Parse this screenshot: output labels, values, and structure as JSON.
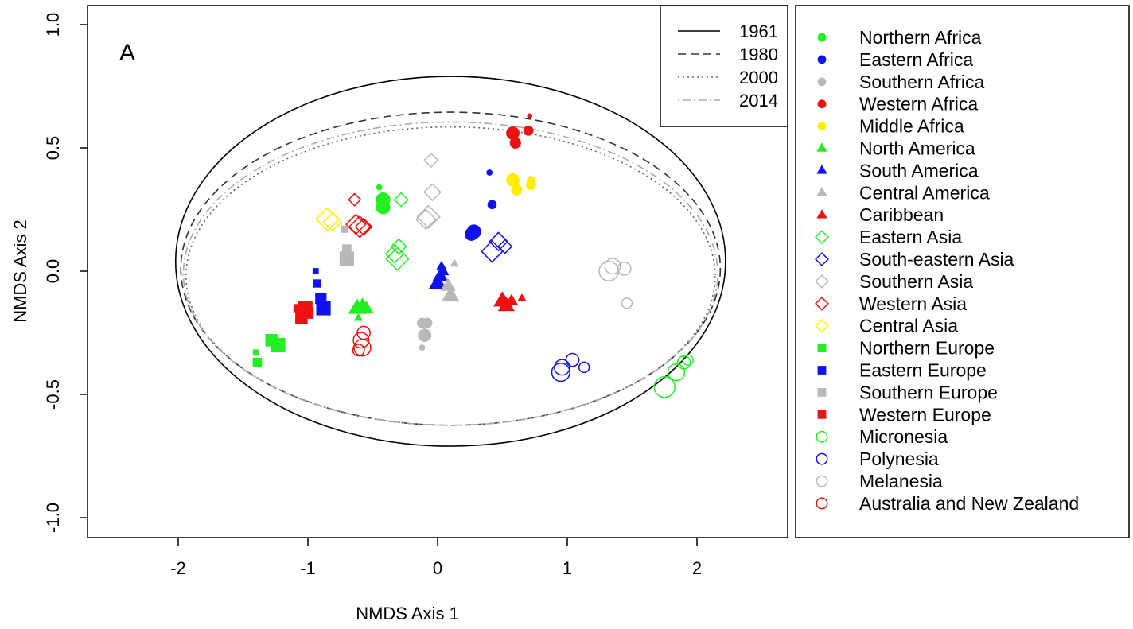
{
  "chart_data": {
    "type": "scatter",
    "panel_label": "A",
    "xlabel": "NMDS Axis 1",
    "ylabel": "NMDS Axis 2",
    "xlim": [
      -2.7,
      2.7
    ],
    "ylim": [
      -1.08,
      1.08
    ],
    "xticks": [
      -2,
      -1,
      0,
      1,
      2
    ],
    "yticks": [
      -1.0,
      -0.5,
      0.0,
      0.5,
      1.0
    ],
    "xtick_labels": [
      "-2",
      "-1",
      "0",
      "1",
      "2"
    ],
    "ytick_labels": [
      "-1.0",
      "-0.5",
      "0.0",
      "0.5",
      "1.0"
    ],
    "grid": false,
    "ellipses": [
      {
        "year": "1961",
        "cx": 0.1,
        "cy": 0.04,
        "rx": 2.12,
        "ry": 0.75,
        "dash": "solid",
        "color": "#000000"
      },
      {
        "year": "1980",
        "cx": 0.1,
        "cy": 0.01,
        "rx": 2.08,
        "ry": 0.635,
        "dash": "dashed",
        "color": "#333333"
      },
      {
        "year": "2000",
        "cx": 0.1,
        "cy": -0.02,
        "rx": 2.04,
        "ry": 0.605,
        "dash": "dotted",
        "color": "#666666"
      },
      {
        "year": "2014",
        "cx": 0.1,
        "cy": -0.01,
        "rx": 2.06,
        "ry": 0.615,
        "dash": "dotdash",
        "color": "#aaaaaa"
      }
    ],
    "line_legend": {
      "placement": "top-right inside",
      "entries": [
        {
          "label": "1961",
          "dash": "solid",
          "color": "#000000"
        },
        {
          "label": "1980",
          "dash": "dashed",
          "color": "#333333"
        },
        {
          "label": "2000",
          "dash": "dotted",
          "color": "#666666"
        },
        {
          "label": "2014",
          "dash": "dotdash",
          "color": "#aaaaaa"
        }
      ]
    },
    "legend_placement": "right outside",
    "series": [
      {
        "name": "Northern Africa",
        "shape": "circle-filled",
        "color": "#22ee22",
        "points": [
          [
            -0.42,
            0.29,
            1.4
          ],
          [
            -0.42,
            0.26,
            1.4
          ],
          [
            -0.45,
            0.34,
            0.6
          ]
        ]
      },
      {
        "name": "Eastern Africa",
        "shape": "circle-filled",
        "color": "#1111ee",
        "points": [
          [
            0.28,
            0.16,
            1.4
          ],
          [
            0.26,
            0.15,
            1.3
          ],
          [
            0.42,
            0.27,
            0.9
          ],
          [
            0.4,
            0.4,
            0.6
          ]
        ]
      },
      {
        "name": "Southern Africa",
        "shape": "circle-filled",
        "color": "#b8b8b8",
        "points": [
          [
            -0.1,
            -0.26,
            1.3
          ],
          [
            -0.12,
            -0.21,
            1.0
          ],
          [
            -0.08,
            -0.21,
            1.0
          ],
          [
            -0.12,
            -0.31,
            0.6
          ]
        ]
      },
      {
        "name": "Western Africa",
        "shape": "circle-filled",
        "color": "#ee1111",
        "points": [
          [
            0.58,
            0.56,
            1.3
          ],
          [
            0.6,
            0.52,
            1.1
          ],
          [
            0.7,
            0.57,
            1.0
          ],
          [
            0.71,
            0.63,
            0.5
          ]
        ]
      },
      {
        "name": "Middle Africa",
        "shape": "circle-filled",
        "color": "#ffee00",
        "points": [
          [
            0.58,
            0.37,
            1.3
          ],
          [
            0.61,
            0.33,
            1.1
          ],
          [
            0.72,
            0.35,
            1.0
          ],
          [
            0.72,
            0.37,
            0.8
          ]
        ]
      },
      {
        "name": "North America",
        "shape": "triangle-filled",
        "color": "#22ee22",
        "points": [
          [
            -0.62,
            -0.15,
            1.4
          ],
          [
            -0.58,
            -0.14,
            1.2
          ],
          [
            -0.55,
            -0.15,
            1.1
          ],
          [
            -0.61,
            -0.19,
            0.7
          ]
        ]
      },
      {
        "name": "South America",
        "shape": "triangle-filled",
        "color": "#1111ee",
        "points": [
          [
            0.0,
            -0.05,
            1.4
          ],
          [
            0.02,
            -0.02,
            1.2
          ],
          [
            0.04,
            0.0,
            1.0
          ],
          [
            0.03,
            0.02,
            0.8
          ]
        ]
      },
      {
        "name": "Central America",
        "shape": "triangle-filled",
        "color": "#b8b8b8",
        "points": [
          [
            0.1,
            -0.1,
            1.4
          ],
          [
            0.08,
            -0.06,
            1.2
          ],
          [
            0.13,
            0.03,
            0.7
          ]
        ]
      },
      {
        "name": "Caribbean",
        "shape": "triangle-filled",
        "color": "#ee1111",
        "points": [
          [
            0.5,
            -0.12,
            1.4
          ],
          [
            0.53,
            -0.14,
            1.3
          ],
          [
            0.57,
            -0.12,
            1.0
          ],
          [
            0.65,
            -0.11,
            0.7
          ]
        ]
      },
      {
        "name": "Eastern Asia",
        "shape": "diamond-open",
        "color": "#22ee22",
        "points": [
          [
            -0.31,
            0.05,
            1.5
          ],
          [
            -0.33,
            0.07,
            1.2
          ],
          [
            -0.3,
            0.1,
            1.0
          ],
          [
            -0.28,
            0.29,
            0.9
          ]
        ]
      },
      {
        "name": "South-eastern Asia",
        "shape": "diamond-open",
        "color": "#1111ee",
        "points": [
          [
            0.42,
            0.08,
            1.4
          ],
          [
            0.47,
            0.12,
            1.2
          ],
          [
            0.52,
            0.1,
            0.9
          ]
        ]
      },
      {
        "name": "Southern Asia",
        "shape": "diamond-open",
        "color": "#b8b8b8",
        "points": [
          [
            -0.07,
            0.22,
            1.5
          ],
          [
            -0.09,
            0.21,
            1.3
          ],
          [
            -0.04,
            0.32,
            1.1
          ],
          [
            -0.05,
            0.45,
            0.9
          ]
        ]
      },
      {
        "name": "Western Asia",
        "shape": "diamond-open",
        "color": "#ee1111",
        "points": [
          [
            -0.6,
            0.18,
            1.4
          ],
          [
            -0.63,
            0.19,
            1.3
          ],
          [
            -0.57,
            0.18,
            1.1
          ],
          [
            -0.64,
            0.29,
            0.8
          ]
        ]
      },
      {
        "name": "Central Asia",
        "shape": "diamond-open",
        "color": "#ffee00",
        "points": [
          [
            -0.85,
            0.21,
            1.5
          ],
          [
            -0.81,
            0.2,
            1.2
          ]
        ]
      },
      {
        "name": "Northern Europe",
        "shape": "square-filled",
        "color": "#22ee22",
        "points": [
          [
            -1.23,
            -0.3,
            1.4
          ],
          [
            -1.28,
            -0.28,
            1.2
          ],
          [
            -1.39,
            -0.37,
            0.9
          ],
          [
            -1.4,
            -0.33,
            0.6
          ]
        ]
      },
      {
        "name": "Eastern Europe",
        "shape": "square-filled",
        "color": "#1111ee",
        "points": [
          [
            -0.88,
            -0.15,
            1.4
          ],
          [
            -0.9,
            -0.11,
            1.1
          ],
          [
            -0.93,
            -0.05,
            0.8
          ],
          [
            -0.94,
            0.0,
            0.6
          ]
        ]
      },
      {
        "name": "Southern Europe",
        "shape": "square-filled",
        "color": "#b8b8b8",
        "points": [
          [
            -0.7,
            0.05,
            1.4
          ],
          [
            -0.7,
            0.09,
            0.9
          ],
          [
            -0.72,
            0.17,
            0.7
          ]
        ]
      },
      {
        "name": "Western Europe",
        "shape": "square-filled",
        "color": "#ee1111",
        "points": [
          [
            -1.02,
            -0.15,
            1.4
          ],
          [
            -1.05,
            -0.19,
            1.2
          ],
          [
            -1.0,
            -0.17,
            1.1
          ],
          [
            -1.08,
            -0.15,
            0.8
          ]
        ]
      },
      {
        "name": "Micronesia",
        "shape": "circle-open",
        "color": "#22ee22",
        "points": [
          [
            1.75,
            -0.47,
            1.6
          ],
          [
            1.84,
            -0.41,
            1.3
          ],
          [
            1.9,
            -0.37,
            1.0
          ],
          [
            1.93,
            -0.36,
            0.8
          ]
        ]
      },
      {
        "name": "Polynesia",
        "shape": "circle-open",
        "color": "#1111ee",
        "points": [
          [
            0.95,
            -0.41,
            1.4
          ],
          [
            0.96,
            -0.39,
            1.2
          ],
          [
            1.04,
            -0.36,
            1.0
          ],
          [
            1.13,
            -0.39,
            0.8
          ]
        ]
      },
      {
        "name": "Melanesia",
        "shape": "circle-open",
        "color": "#b8b8b8",
        "points": [
          [
            1.32,
            0.0,
            1.5
          ],
          [
            1.35,
            0.02,
            1.2
          ],
          [
            1.44,
            0.01,
            1.0
          ],
          [
            1.46,
            -0.13,
            0.8
          ]
        ]
      },
      {
        "name": "Australia and New Zealand",
        "shape": "circle-open",
        "color": "#ee1111",
        "points": [
          [
            -0.58,
            -0.31,
            1.3
          ],
          [
            -0.59,
            -0.28,
            1.2
          ],
          [
            -0.57,
            -0.25,
            1.0
          ],
          [
            -0.61,
            -0.32,
            0.9
          ]
        ]
      }
    ]
  }
}
